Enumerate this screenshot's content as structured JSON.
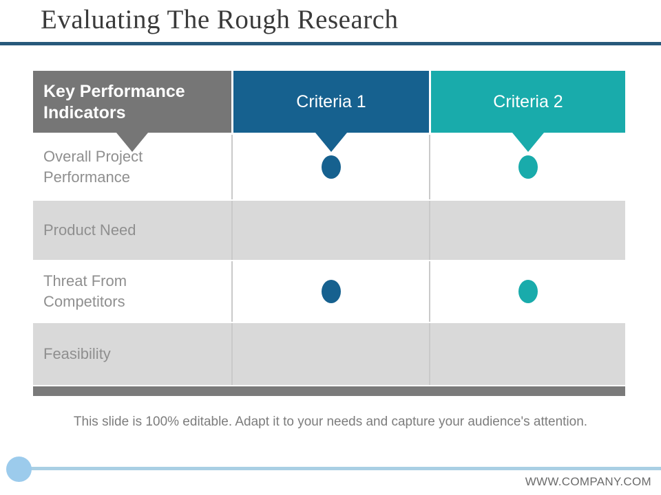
{
  "slide": {
    "title": "Evaluating The Rough Research",
    "caption": "This slide is 100% editable. Adapt it to your needs and capture your audience's attention.",
    "footer_url": "WWW.COMPANY.COM"
  },
  "table": {
    "header": {
      "kpi_label": "Key Performance Indicators",
      "criteria1_label": "Criteria 1",
      "criteria2_label": "Criteria 2"
    },
    "rows": [
      {
        "label": "Overall Project Performance",
        "criteria1": true,
        "criteria2": true
      },
      {
        "label": "Product Need",
        "criteria1": false,
        "criteria2": false
      },
      {
        "label": "Threat From Competitors",
        "criteria1": true,
        "criteria2": true
      },
      {
        "label": "Feasibility",
        "criteria1": false,
        "criteria2": false
      }
    ]
  },
  "colors": {
    "title_underline": "#27597b",
    "header_gray": "#767676",
    "criteria1_blue": "#16618f",
    "criteria2_teal": "#19abab",
    "row_shaded": "#d9d9d9",
    "bottom_bar": "#7a7a7a",
    "footer_circle": "#9ccbec",
    "footer_line": "#a9cfe4",
    "label_text": "#8f8f8f"
  }
}
